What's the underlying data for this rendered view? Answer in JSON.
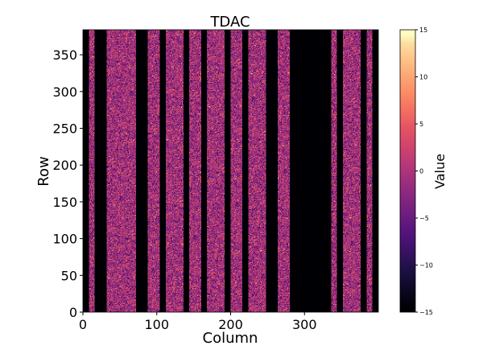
{
  "chart_data": {
    "type": "heatmap",
    "title": "TDAC",
    "xlabel": "Column",
    "ylabel": "Row",
    "xlim": [
      0,
      400
    ],
    "ylim": [
      0,
      384
    ],
    "xticks": [
      "0",
      "100",
      "200",
      "300"
    ],
    "xtick_values": [
      0,
      100,
      200,
      300
    ],
    "yticks": [
      "0",
      "50",
      "100",
      "150",
      "200",
      "250",
      "300",
      "350"
    ],
    "ytick_values": [
      0,
      50,
      100,
      150,
      200,
      250,
      300,
      350
    ],
    "colormap": "magma",
    "colorbar": {
      "label": "Value",
      "range": [
        -15,
        15
      ],
      "ticks": [
        "15",
        "10",
        "5",
        "0",
        "−5",
        "−10",
        "−15"
      ],
      "tick_values": [
        15,
        10,
        5,
        0,
        -5,
        -10,
        -15
      ]
    },
    "active_column_ranges": [
      [
        8,
        16
      ],
      [
        32,
        72
      ],
      [
        88,
        104
      ],
      [
        112,
        136
      ],
      [
        144,
        160
      ],
      [
        168,
        192
      ],
      [
        200,
        216
      ],
      [
        224,
        248
      ],
      [
        264,
        280
      ],
      [
        336,
        344
      ],
      [
        352,
        376
      ],
      [
        384,
        392
      ]
    ],
    "active_value_distribution": {
      "mean": -1,
      "std": 4
    },
    "masked_value": -15
  }
}
